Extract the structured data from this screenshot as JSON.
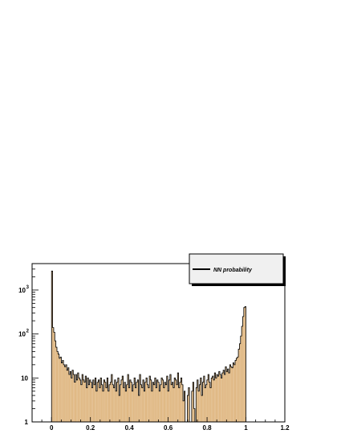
{
  "chart_data": {
    "type": "bar",
    "title": "",
    "xlabel": "",
    "ylabel": "",
    "yscale": "log",
    "xlim": [
      -0.1,
      1.2
    ],
    "ylim": [
      1,
      4000
    ],
    "x_ticks": [
      "0",
      "0.2",
      "0.4",
      "0.6",
      "0.8",
      "1",
      "1.2"
    ],
    "y_ticks": [
      {
        "value": 1,
        "base": "1",
        "exp": ""
      },
      {
        "value": 10,
        "base": "10",
        "exp": ""
      },
      {
        "value": 100,
        "base": "10",
        "exp": "2"
      },
      {
        "value": 1000,
        "base": "10",
        "exp": "3"
      }
    ],
    "fill_color": "#e0b985",
    "line_color": "#000000",
    "legend": {
      "placement": "top-right",
      "label": "NN probability"
    },
    "bin_range": [
      0,
      1
    ],
    "bin_counts": [
      2700,
      140,
      110,
      70,
      50,
      40,
      35,
      28,
      30,
      22,
      25,
      20,
      18,
      20,
      15,
      17,
      12,
      14,
      10,
      15,
      12,
      8,
      12,
      9,
      13,
      10,
      9,
      7,
      12,
      9,
      8,
      11,
      6,
      10,
      7,
      9,
      8,
      6,
      9,
      7,
      10,
      5,
      8,
      9,
      6,
      10,
      7,
      5,
      9,
      8,
      6,
      10,
      5,
      7,
      8,
      12,
      7,
      6,
      9,
      5,
      8,
      10,
      4,
      7,
      9,
      11,
      6,
      8,
      5,
      7,
      12,
      6,
      9,
      8,
      5,
      7,
      10,
      6,
      8,
      9,
      4,
      12,
      7,
      6,
      9,
      5,
      8,
      10,
      7,
      6,
      11,
      9,
      5,
      8,
      7,
      10,
      6,
      9,
      8,
      5,
      7,
      10,
      9,
      6,
      8,
      7,
      11,
      5,
      9,
      12,
      7,
      8,
      6,
      10,
      9,
      7,
      13,
      6,
      8,
      10,
      7,
      3,
      5,
      1,
      1,
      4,
      6,
      1,
      1,
      5,
      8,
      2,
      1,
      6,
      9,
      5,
      7,
      10,
      4,
      8,
      11,
      6,
      7,
      9,
      12,
      8,
      6,
      10,
      11,
      9,
      13,
      10,
      12,
      11,
      14,
      12,
      10,
      13,
      15,
      12,
      18,
      14,
      16,
      13,
      20,
      18,
      17,
      22,
      20,
      25,
      28,
      30,
      45,
      60,
      90,
      150,
      250,
      400,
      420
    ]
  }
}
